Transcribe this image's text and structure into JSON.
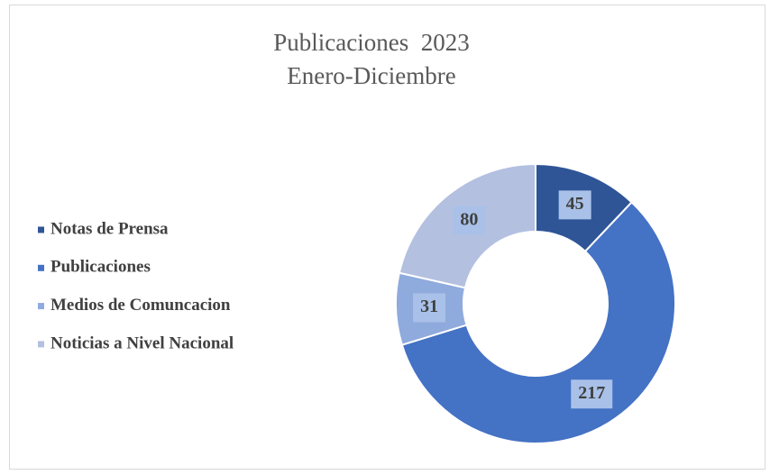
{
  "chart_data": {
    "type": "donut",
    "title": "Publicaciones  2023",
    "subtitle": "Enero-Diciembre",
    "categories": [
      "Notas de Prensa",
      "Publicaciones",
      "Medios de Comuncacion",
      "Noticias a Nivel Nacional"
    ],
    "values": [
      45,
      217,
      31,
      80
    ],
    "colors": [
      "#2f5597",
      "#4472c4",
      "#8faadc",
      "#b4c0e0"
    ],
    "legend": "left"
  }
}
